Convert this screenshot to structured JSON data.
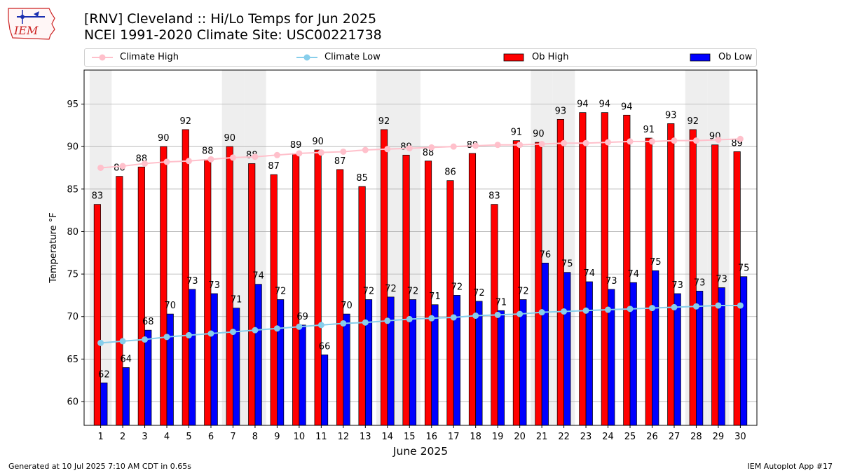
{
  "header": {
    "title_line1": "[RNV] Cleveland :: Hi/Lo Temps for Jun 2025",
    "title_line2": "NCEI 1991-2020 Climate Site: USC00221738",
    "logo_text": "IEM"
  },
  "footer": {
    "generated": "Generated at 10 Jul 2025 7:10 AM CDT in 0.65s",
    "app": "IEM Autoplot App #17"
  },
  "colors": {
    "climate_high": "#ffc0cb",
    "climate_low": "#87ceeb",
    "ob_high": "#ff0000",
    "ob_low": "#0000ff",
    "weekend_shade": "#eeeeee",
    "grid": "#b0b0b0"
  },
  "chart_data": {
    "type": "bar",
    "title": "[RNV] Cleveland :: Hi/Lo Temps for Jun 2025",
    "xlabel": "June 2025",
    "ylabel": "Temperature °F",
    "categories": [
      "1",
      "2",
      "3",
      "4",
      "5",
      "6",
      "7",
      "8",
      "9",
      "10",
      "11",
      "12",
      "13",
      "14",
      "15",
      "16",
      "17",
      "18",
      "19",
      "20",
      "21",
      "22",
      "23",
      "24",
      "25",
      "26",
      "27",
      "28",
      "29",
      "30"
    ],
    "ylim": [
      57.2,
      99.0
    ],
    "yticks": [
      60,
      65,
      70,
      75,
      80,
      85,
      90,
      95
    ],
    "grid": "horizontal",
    "legend_position": "top",
    "shaded_days": [
      1,
      7,
      8,
      14,
      15,
      21,
      22,
      28,
      29
    ],
    "series": [
      {
        "name": "Climate High",
        "kind": "line",
        "values": [
          87.5,
          87.7,
          88.0,
          88.2,
          88.3,
          88.5,
          88.7,
          88.8,
          89.0,
          89.2,
          89.3,
          89.4,
          89.6,
          89.7,
          89.8,
          89.9,
          90.0,
          90.1,
          90.2,
          90.2,
          90.3,
          90.4,
          90.4,
          90.5,
          90.6,
          90.6,
          90.7,
          90.7,
          90.8,
          90.9
        ]
      },
      {
        "name": "Climate Low",
        "kind": "line",
        "values": [
          66.9,
          67.1,
          67.3,
          67.6,
          67.8,
          68.0,
          68.2,
          68.4,
          68.6,
          68.8,
          69.0,
          69.2,
          69.3,
          69.5,
          69.7,
          69.8,
          69.9,
          70.1,
          70.2,
          70.3,
          70.5,
          70.6,
          70.7,
          70.8,
          70.9,
          71.0,
          71.1,
          71.2,
          71.3,
          71.3
        ]
      },
      {
        "name": "Ob High",
        "kind": "bar",
        "values": [
          83,
          86,
          88,
          90,
          92,
          88,
          90,
          88,
          87,
          89,
          90,
          87,
          85,
          92,
          89,
          88,
          86,
          89,
          83,
          91,
          90,
          93,
          94,
          94,
          94,
          91,
          93,
          92,
          90,
          89
        ],
        "heights": [
          83.2,
          86.5,
          87.6,
          90.0,
          92.0,
          88.5,
          90.0,
          88.0,
          86.7,
          89.2,
          89.6,
          87.3,
          85.3,
          92.0,
          89.0,
          88.3,
          86.0,
          89.2,
          83.2,
          90.7,
          90.5,
          93.2,
          94.0,
          94.0,
          93.7,
          91.0,
          92.7,
          92.0,
          90.2,
          89.4
        ]
      },
      {
        "name": "Ob Low",
        "kind": "bar",
        "values": [
          62,
          64,
          68,
          70,
          73,
          73,
          71,
          74,
          72,
          69,
          66,
          70,
          72,
          72,
          72,
          71,
          72,
          72,
          71,
          72,
          76,
          75,
          74,
          73,
          74,
          75,
          73,
          73,
          73,
          75
        ],
        "heights": [
          62.2,
          64.0,
          68.4,
          70.3,
          73.2,
          72.7,
          71.0,
          73.8,
          72.0,
          69.0,
          65.5,
          70.3,
          72.0,
          72.3,
          72.0,
          71.4,
          72.5,
          71.8,
          70.7,
          72.0,
          76.3,
          75.2,
          74.1,
          73.2,
          74.0,
          75.4,
          72.7,
          73.0,
          73.4,
          74.7
        ]
      }
    ]
  }
}
